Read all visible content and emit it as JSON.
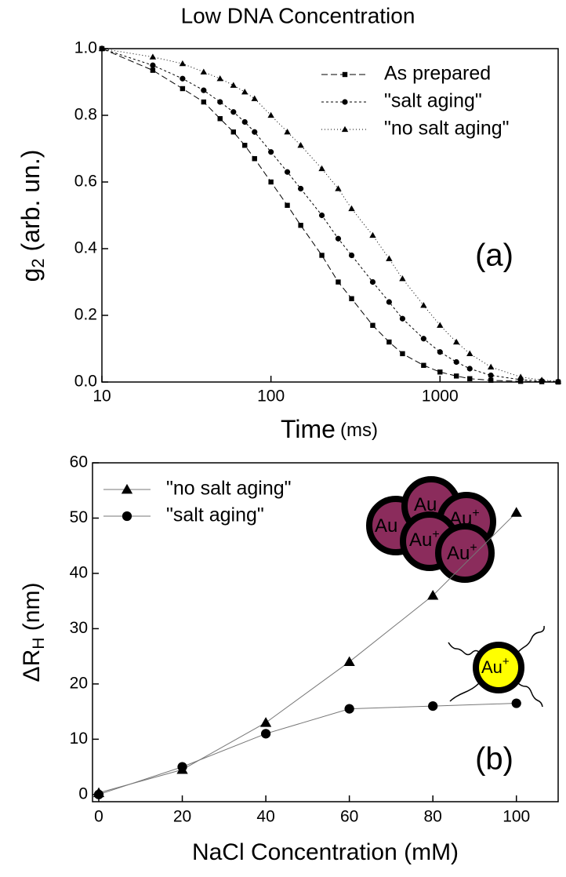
{
  "chart_data": [
    {
      "type": "line",
      "title": "Low DNA Concentration",
      "ylabel": "g",
      "ylabel_sub": "2",
      "ylabel_rest": " (arb. un.)",
      "xlabel": "Time",
      "xlabel_unit": "(ms)",
      "annotation": "(a)",
      "xlog": true,
      "legend": "upper right",
      "x": [
        10,
        20,
        30,
        40,
        50,
        60,
        70,
        80,
        100,
        125,
        150,
        200,
        250,
        300,
        400,
        500,
        600,
        800,
        1000,
        1250,
        1500,
        2000,
        3000,
        4000,
        5000
      ],
      "series": [
        {
          "name": "As prepared",
          "color": "#000000",
          "marker": "square",
          "dash": "8,4",
          "values": [
            1.0,
            0.935,
            0.88,
            0.84,
            0.79,
            0.75,
            0.71,
            0.67,
            0.6,
            0.53,
            0.47,
            0.38,
            0.3,
            0.25,
            0.17,
            0.12,
            0.085,
            0.05,
            0.03,
            0.018,
            0.01,
            0.005,
            0.002,
            0.001,
            0.0
          ]
        },
        {
          "name": "\"salt aging\"",
          "color": "#000000",
          "marker": "circle",
          "dash": "3,3",
          "values": [
            1.0,
            0.95,
            0.91,
            0.875,
            0.84,
            0.81,
            0.78,
            0.75,
            0.69,
            0.63,
            0.58,
            0.5,
            0.43,
            0.38,
            0.3,
            0.24,
            0.19,
            0.13,
            0.09,
            0.06,
            0.04,
            0.02,
            0.007,
            0.003,
            0.001
          ]
        },
        {
          "name": "\"no salt aging\"",
          "color": "#000000",
          "marker": "triangle",
          "dash": "1,3",
          "values": [
            1.0,
            0.975,
            0.955,
            0.93,
            0.91,
            0.89,
            0.87,
            0.85,
            0.8,
            0.75,
            0.71,
            0.64,
            0.58,
            0.52,
            0.44,
            0.37,
            0.31,
            0.23,
            0.17,
            0.12,
            0.085,
            0.045,
            0.015,
            0.006,
            0.002
          ]
        }
      ],
      "xlim": [
        10,
        5000
      ],
      "xticks": [
        10,
        100,
        1000
      ],
      "ylim": [
        0,
        1.0
      ],
      "yticks": [
        {
          "value": 0,
          "label": "0.0"
        },
        {
          "value": 0.2,
          "label": "0.2"
        },
        {
          "value": 0.4,
          "label": "0.4"
        },
        {
          "value": 0.6,
          "label": "0.6"
        },
        {
          "value": 0.8,
          "label": "0.8"
        },
        {
          "value": 1.0,
          "label": "1.0"
        }
      ]
    },
    {
      "type": "line",
      "ylabel": "ΔR",
      "ylabel_sub": "H",
      "ylabel_rest": " (nm)",
      "xlabel": "NaCl Concentration (mM)",
      "annotation": "(b)",
      "particle_label": "Au",
      "particle_charge": "+",
      "xlog": false,
      "legend": "upper left",
      "x": [
        0,
        20,
        40,
        60,
        80,
        100
      ],
      "series": [
        {
          "name": "\"no salt aging\"",
          "color": "#000000",
          "marker": "triangle",
          "values": [
            0.3,
            4.5,
            13,
            24,
            36,
            51
          ]
        },
        {
          "name": "\"salt aging\"",
          "color": "#000000",
          "marker": "circle",
          "values": [
            0,
            5,
            11,
            15.5,
            16,
            16.5
          ]
        }
      ],
      "xlim": [
        -1.5,
        110
      ],
      "xticks": [
        0,
        20,
        40,
        60,
        80,
        100
      ],
      "ylim": [
        -1.3,
        60
      ],
      "yticks": [
        0,
        10,
        20,
        30,
        40,
        50,
        60
      ]
    }
  ]
}
